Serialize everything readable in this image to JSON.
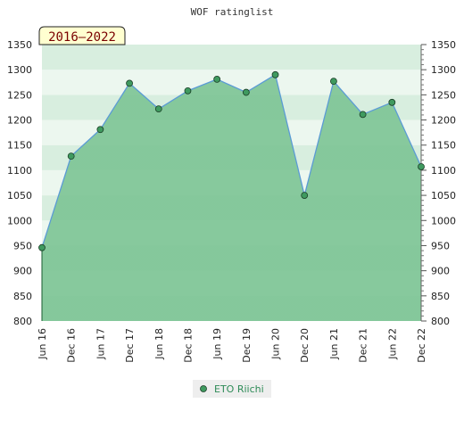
{
  "chart_data": {
    "type": "area",
    "title": "WOF ratinglist",
    "period_label": "2016–2022",
    "categories": [
      "Jun 16",
      "Dec 16",
      "Jun 17",
      "Dec 17",
      "Jun 18",
      "Dec 18",
      "Jun 19",
      "Dec 19",
      "Jun 20",
      "Dec 20",
      "Jun 21",
      "Dec 21",
      "Jun 22",
      "Dec 22"
    ],
    "series": [
      {
        "name": "ETO Riichi",
        "values": [
          946,
          1128,
          1181,
          1273,
          1222,
          1258,
          1281,
          1255,
          1290,
          1050,
          1277,
          1211,
          1235,
          1107
        ]
      }
    ],
    "ylim": [
      800,
      1350
    ],
    "yticks": [
      800,
      850,
      900,
      950,
      1000,
      1050,
      1100,
      1150,
      1200,
      1250,
      1300,
      1350
    ],
    "xlabel": "",
    "ylabel": "",
    "legend_position": "bottom",
    "colors": {
      "line": "#5b9bd5",
      "fill": "#6bbf8a",
      "marker": "#3f9a5f",
      "band_dark": "#7cc494",
      "band_light": "#cfe9d6",
      "badge_bg": "#ffffd0",
      "badge_text": "#7a0000",
      "legend_text": "#2e8b57"
    }
  }
}
